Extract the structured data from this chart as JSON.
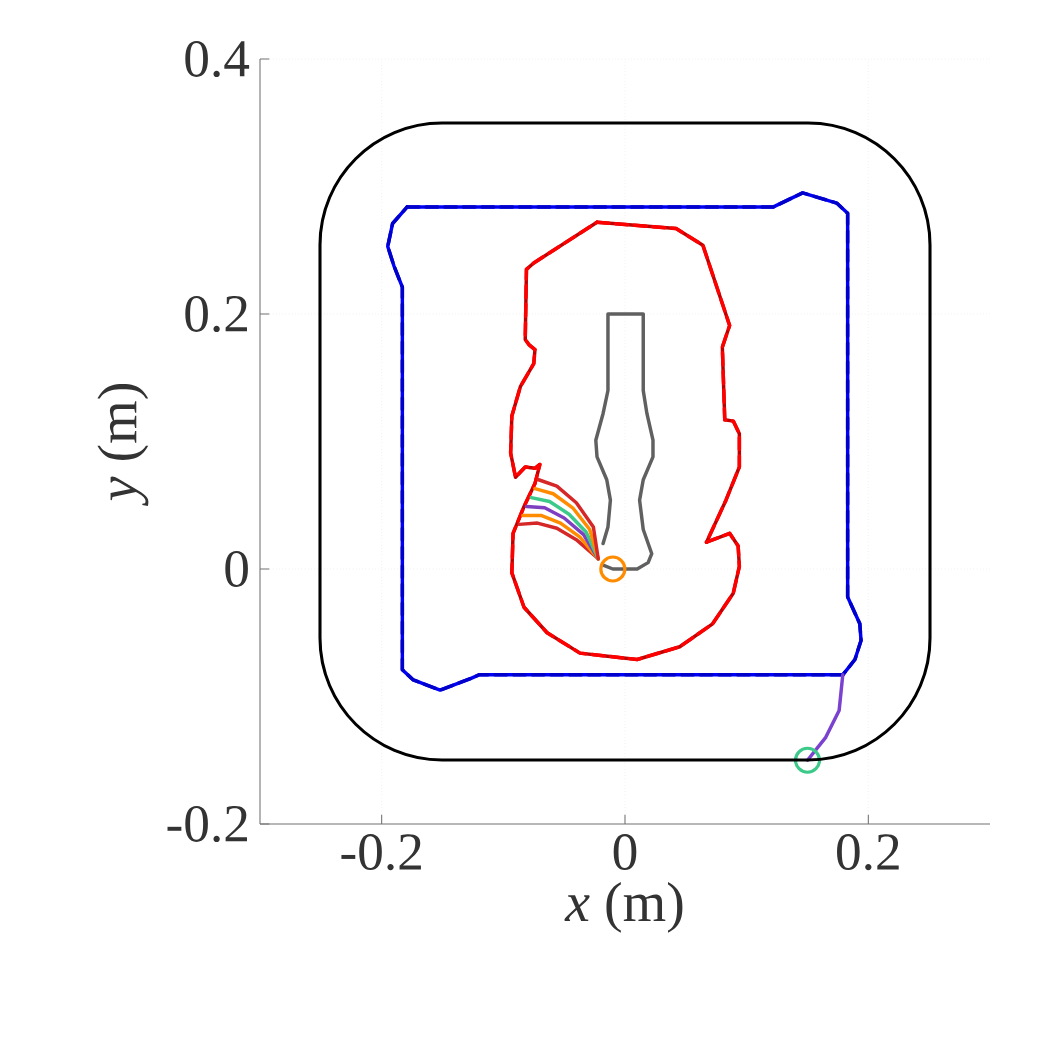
{
  "chart_data": {
    "type": "line",
    "xlabel": "*x* (m)",
    "ylabel": "*y* (m)",
    "xlim": [
      -0.3,
      0.3
    ],
    "ylim": [
      -0.2,
      0.4
    ],
    "xticks": [
      -0.2,
      0,
      0.2
    ],
    "yticks": [
      -0.2,
      0,
      0.2,
      0.4
    ],
    "grid": true,
    "series": [
      {
        "color": "#0000ff",
        "x": [
          -0.179,
          0.122,
          0.146,
          0.174,
          0.183,
          0.183,
          0.193,
          0.194,
          0.189,
          0.179
        ],
        "values": [
          0.284,
          0.284,
          0.295,
          0.287,
          0.279,
          -0.022,
          -0.043,
          -0.056,
          -0.071,
          -0.083
        ]
      },
      {
        "color": "#0000ff",
        "x": [
          0.179,
          -0.12,
          -0.127,
          -0.152,
          -0.174,
          -0.183,
          -0.183,
          -0.19,
          -0.195,
          -0.191,
          -0.179
        ],
        "values": [
          -0.083,
          -0.083,
          -0.086,
          -0.095,
          -0.087,
          -0.079,
          0.221,
          0.238,
          0.253,
          0.271,
          0.284
        ]
      },
      {
        "color": "#0000cc",
        "line_style": "dashed",
        "x": [
          -0.179,
          0.122,
          0.146,
          0.174,
          0.183,
          0.183,
          0.193,
          0.194,
          0.189,
          0.179
        ],
        "values": [
          0.284,
          0.284,
          0.295,
          0.287,
          0.279,
          -0.022,
          -0.043,
          -0.056,
          -0.071,
          -0.083
        ]
      },
      {
        "color": "#0000cc",
        "line_style": "dashed",
        "x": [
          0.179,
          -0.12,
          -0.127,
          -0.152,
          -0.174,
          -0.183,
          -0.183,
          -0.19,
          -0.195,
          -0.191,
          -0.179
        ],
        "values": [
          -0.083,
          -0.083,
          -0.086,
          -0.095,
          -0.087,
          -0.079,
          0.221,
          0.238,
          0.253,
          0.271,
          0.284
        ]
      },
      {
        "color": "#c00000",
        "x": [
          -0.023,
          0.042,
          0.064,
          0.086,
          0.08,
          0.082,
          0.089,
          0.094,
          0.094,
          0.083,
          0.067
        ],
        "values": [
          0.272,
          0.267,
          0.254,
          0.191,
          0.174,
          0.117,
          0.116,
          0.106,
          0.08,
          0.054,
          0.021
        ]
      },
      {
        "color": "#c00000",
        "x": [
          0.067,
          0.078,
          0.086,
          0.093,
          0.094,
          0.089,
          0.072,
          0.045,
          0.01,
          -0.018,
          -0.037,
          -0.064,
          -0.083,
          -0.093,
          -0.092,
          -0.083,
          -0.074,
          -0.07,
          -0.074,
          -0.082,
          -0.09,
          -0.094,
          -0.093,
          -0.086,
          -0.075,
          -0.074,
          -0.079,
          -0.082,
          -0.081,
          -0.075,
          -0.023
        ],
        "values": [
          0.021,
          0.025,
          0.028,
          0.018,
          0.002,
          -0.019,
          -0.043,
          -0.061,
          -0.071,
          -0.068,
          -0.066,
          -0.05,
          -0.03,
          -0.003,
          0.028,
          0.049,
          0.067,
          0.082,
          0.079,
          0.08,
          0.072,
          0.091,
          0.12,
          0.143,
          0.161,
          0.172,
          0.176,
          0.18,
          0.235,
          0.24,
          0.272
        ]
      },
      {
        "color": "#ff0000",
        "line_style": "dashed",
        "x": [
          -0.023,
          0.042,
          0.064,
          0.086,
          0.08,
          0.082,
          0.089,
          0.094,
          0.094,
          0.083,
          0.067
        ],
        "values": [
          0.272,
          0.267,
          0.254,
          0.191,
          0.174,
          0.117,
          0.116,
          0.106,
          0.08,
          0.054,
          0.021
        ]
      },
      {
        "color": "#ff0000",
        "line_style": "dashed",
        "x": [
          0.067,
          0.078,
          0.086,
          0.093,
          0.094,
          0.089,
          0.072,
          0.045,
          0.01,
          -0.018,
          -0.037,
          -0.064,
          -0.083,
          -0.093,
          -0.092,
          -0.083,
          -0.074,
          -0.07,
          -0.074,
          -0.082,
          -0.09,
          -0.094,
          -0.093,
          -0.086,
          -0.075,
          -0.074,
          -0.079,
          -0.082,
          -0.081,
          -0.075,
          -0.023
        ],
        "values": [
          0.021,
          0.025,
          0.028,
          0.018,
          0.002,
          -0.019,
          -0.043,
          -0.061,
          -0.071,
          -0.068,
          -0.066,
          -0.05,
          -0.03,
          -0.003,
          0.028,
          0.049,
          0.067,
          0.082,
          0.079,
          0.08,
          0.072,
          0.091,
          0.12,
          0.143,
          0.161,
          0.172,
          0.176,
          0.18,
          0.235,
          0.24,
          0.272
        ]
      },
      {
        "color": "#606060",
        "x": [
          -0.018,
          -0.01,
          0.01,
          0.019,
          0.022,
          0.015,
          0.012,
          0.015,
          0.023,
          0.023,
          0.018,
          0.015,
          0.015,
          -0.014,
          -0.014,
          -0.018,
          -0.024,
          -0.023,
          -0.015,
          -0.012,
          -0.014,
          -0.018
        ],
        "values": [
          0.003,
          0,
          0,
          0.005,
          0.012,
          0.031,
          0.054,
          0.07,
          0.088,
          0.101,
          0.122,
          0.14,
          0.2,
          0.2,
          0.14,
          0.122,
          0.101,
          0.088,
          0.07,
          0.054,
          0.033,
          0.02
        ]
      },
      {
        "color": "#d62728",
        "x": [
          -0.087,
          -0.072,
          -0.056,
          -0.04,
          -0.022
        ],
        "values": [
          0.035,
          0.036,
          0.032,
          0.023,
          0.008
        ]
      },
      {
        "color": "#ff8c00",
        "x": [
          -0.084,
          -0.069,
          -0.053,
          -0.037,
          -0.022
        ],
        "values": [
          0.042,
          0.042,
          0.036,
          0.025,
          0.008
        ]
      },
      {
        "color": "#7e3fc0",
        "x": [
          -0.081,
          -0.066,
          -0.05,
          -0.034,
          -0.022
        ],
        "values": [
          0.049,
          0.048,
          0.04,
          0.027,
          0.008
        ]
      },
      {
        "color": "#3cc98a",
        "x": [
          -0.077,
          -0.062,
          -0.046,
          -0.032,
          -0.022
        ],
        "values": [
          0.056,
          0.053,
          0.043,
          0.029,
          0.008
        ]
      },
      {
        "color": "#ff8c00",
        "x": [
          -0.074,
          -0.059,
          -0.043,
          -0.029,
          -0.022
        ],
        "values": [
          0.063,
          0.059,
          0.048,
          0.031,
          0.008
        ]
      },
      {
        "color": "#d62728",
        "x": [
          -0.071,
          -0.056,
          -0.04,
          -0.026,
          -0.022
        ],
        "values": [
          0.07,
          0.065,
          0.052,
          0.033,
          0.008
        ]
      },
      {
        "color": "#7b42d0",
        "x": [
          0.179,
          0.176,
          0.165,
          0.15
        ],
        "values": [
          -0.083,
          -0.111,
          -0.132,
          -0.15
        ]
      },
      {
        "type": "scatter",
        "marker": "circle",
        "color": "#ff8c00",
        "x": [
          -0.01
        ],
        "values": [
          0
        ]
      },
      {
        "type": "scatter",
        "marker": "circle",
        "color": "#3cc98a",
        "x": [
          0.15
        ],
        "values": [
          -0.15
        ]
      }
    ]
  }
}
